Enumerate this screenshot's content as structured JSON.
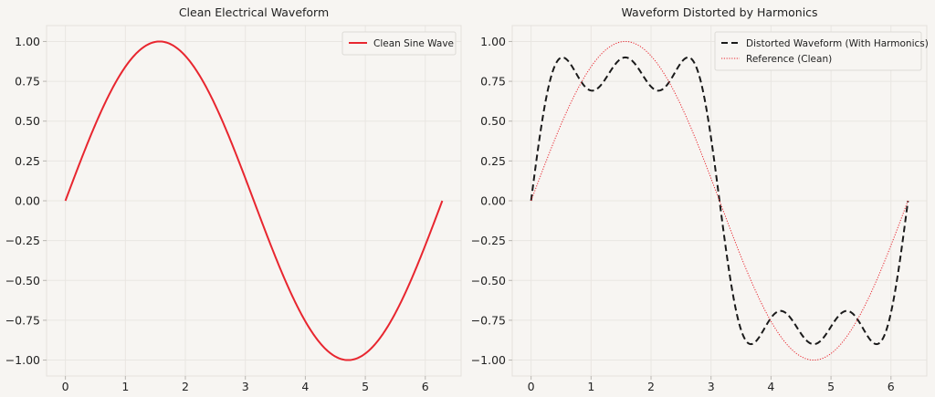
{
  "chart_data": [
    {
      "type": "line",
      "title": "Clean Electrical Waveform",
      "xlim": [
        -0.314,
        6.597
      ],
      "ylim": [
        -1.1,
        1.1
      ],
      "xticks": [
        0,
        1,
        2,
        3,
        4,
        5,
        6
      ],
      "yticks": [
        -1.0,
        -0.75,
        -0.5,
        -0.25,
        0.0,
        0.25,
        0.5,
        0.75,
        1.0
      ],
      "xtick_labels": [
        "0",
        "1",
        "2",
        "3",
        "4",
        "5",
        "6"
      ],
      "ytick_labels": [
        "−1.00",
        "−0.75",
        "−0.50",
        "−0.25",
        "0.00",
        "0.25",
        "0.50",
        "0.75",
        "1.00"
      ],
      "grid": true,
      "legend_position": "top-right",
      "series": [
        {
          "name": "Clean Sine Wave",
          "color": "#e8262f",
          "style": "solid",
          "function": "sin(x)",
          "x_range": [
            0,
            6.2832
          ],
          "sample_points": [
            [
              0,
              0.0
            ],
            [
              0.785,
              0.707
            ],
            [
              1.571,
              1.0
            ],
            [
              2.356,
              0.707
            ],
            [
              3.142,
              0.0
            ],
            [
              3.927,
              -0.707
            ],
            [
              4.712,
              -1.0
            ],
            [
              5.498,
              -0.707
            ],
            [
              6.283,
              0.0
            ]
          ]
        }
      ]
    },
    {
      "type": "line",
      "title": "Waveform Distorted by Harmonics",
      "xlim": [
        -0.314,
        6.597
      ],
      "ylim": [
        -1.1,
        1.1
      ],
      "xticks": [
        0,
        1,
        2,
        3,
        4,
        5,
        6
      ],
      "yticks": [
        -1.0,
        -0.75,
        -0.5,
        -0.25,
        0.0,
        0.25,
        0.5,
        0.75,
        1.0
      ],
      "xtick_labels": [
        "0",
        "1",
        "2",
        "3",
        "4",
        "5",
        "6"
      ],
      "ytick_labels": [
        "−1.00",
        "−0.75",
        "−0.50",
        "−0.25",
        "0.00",
        "0.25",
        "0.50",
        "0.75",
        "1.00"
      ],
      "grid": true,
      "legend_position": "top-right",
      "series": [
        {
          "name": "Distorted Waveform (With Harmonics)",
          "color": "#1a1a1a",
          "style": "dashed",
          "function": "sin(x) + 0.3*sin(3x) + 0.2*sin(5x)",
          "x_range": [
            0,
            6.2832
          ],
          "sample_points": [
            [
              0,
              0.0
            ],
            [
              0.524,
              0.9
            ],
            [
              1.047,
              0.693
            ],
            [
              1.571,
              0.9
            ],
            [
              2.094,
              0.693
            ],
            [
              2.618,
              0.9
            ],
            [
              3.142,
              0.0
            ],
            [
              3.665,
              -0.9
            ],
            [
              4.189,
              -0.693
            ],
            [
              4.712,
              -0.9
            ],
            [
              5.236,
              -0.693
            ],
            [
              5.76,
              -0.9
            ],
            [
              6.283,
              0.0
            ]
          ]
        },
        {
          "name": "Reference (Clean)",
          "color": "#e8262f",
          "style": "dotted",
          "function": "sin(x)",
          "x_range": [
            0,
            6.2832
          ],
          "sample_points": [
            [
              0,
              0.0
            ],
            [
              1.571,
              1.0
            ],
            [
              3.142,
              0.0
            ],
            [
              4.712,
              -1.0
            ],
            [
              6.283,
              0.0
            ]
          ]
        }
      ]
    }
  ]
}
